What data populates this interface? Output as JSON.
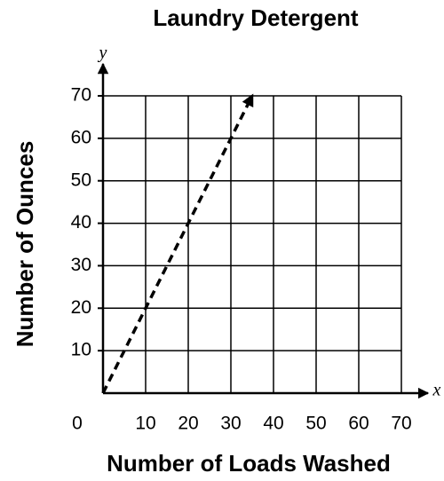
{
  "chart_data": {
    "type": "line",
    "title": "Laundry Detergent",
    "x_label": "Number of Loads Washed",
    "y_label": "Number of Ounces",
    "x_axis_name": "x",
    "y_axis_name": "y",
    "x": [
      0,
      10,
      20,
      30,
      35
    ],
    "series": [
      {
        "name": "Ounces",
        "color": "#000000",
        "values": [
          0,
          20,
          40,
          60,
          70
        ]
      }
    ],
    "xlim": [
      0,
      70
    ],
    "xticks": [
      0,
      10,
      20,
      30,
      40,
      50,
      60,
      70
    ],
    "ylim": [
      0,
      70
    ],
    "yticks": [
      10,
      20,
      30,
      40,
      50,
      60,
      70
    ],
    "grid": true,
    "line_style": "dashed"
  }
}
